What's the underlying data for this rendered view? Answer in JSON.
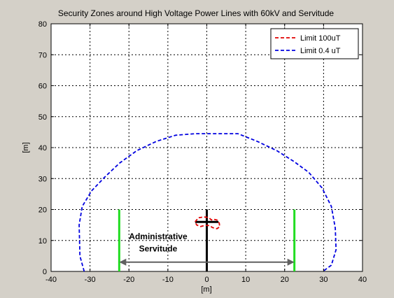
{
  "chart_data": {
    "type": "line",
    "title": "Security Zones around High Voltage Power Lines with 60kV and Servitude",
    "xlabel": "[m]",
    "ylabel": "[m]",
    "xlim": [
      -40,
      40
    ],
    "ylim": [
      0,
      80
    ],
    "xticks": [
      -40,
      -30,
      -20,
      -10,
      0,
      10,
      20,
      30,
      40
    ],
    "yticks": [
      0,
      10,
      20,
      30,
      40,
      50,
      60,
      70,
      80
    ],
    "grid": true,
    "legend_position": "top-right",
    "series": [
      {
        "name": "Limit 100uT",
        "color": "#e00000",
        "style": "dashed",
        "x": [
          -3.0,
          -2.2,
          -0.8,
          0.5,
          1.2,
          1.6,
          2.6,
          3.2,
          3.3,
          2.6,
          1.4,
          0.8,
          -0.4,
          -1.6,
          -2.6,
          -3.0
        ],
        "y": [
          16.0,
          17.3,
          17.6,
          17.4,
          16.6,
          16.9,
          16.6,
          15.6,
          14.4,
          13.8,
          14.2,
          14.8,
          14.9,
          14.5,
          15.0,
          16.0
        ]
      },
      {
        "name": "Limit 0.4 uT",
        "color": "#0000e0",
        "style": "dashed",
        "x": [
          -31.5,
          -32.6,
          -32.8,
          -32.0,
          -29.6,
          -26.2,
          -22.4,
          -18.0,
          -13.0,
          -8.0,
          -3.0,
          0.0,
          3.0,
          8.0,
          13.0,
          18.0,
          22.4,
          26.2,
          29.6,
          32.0,
          33.0,
          33.2,
          32.0,
          29.8
        ],
        "y": [
          0,
          5,
          15,
          21,
          26,
          30.5,
          35,
          39,
          42,
          44,
          44.5,
          44.5,
          44.5,
          44.5,
          42,
          39,
          35.5,
          32,
          27,
          21,
          14,
          7,
          2,
          0
        ]
      }
    ],
    "structures": {
      "servitude_bounds_x": [
        -22.5,
        22.5
      ],
      "servitude_post_height": 20,
      "pole_x": 0,
      "pole_height": 20,
      "crossarm_y": 16,
      "crossarm_x": [
        -3,
        3
      ],
      "arrow_y": 3,
      "arrow_x": [
        -22.5,
        22.5
      ],
      "arrow_label": [
        "Administrative",
        "Servitude"
      ]
    },
    "colors": {
      "servitude_posts": "#22dd22",
      "pole": "#000000",
      "arrow": "#606060"
    }
  }
}
